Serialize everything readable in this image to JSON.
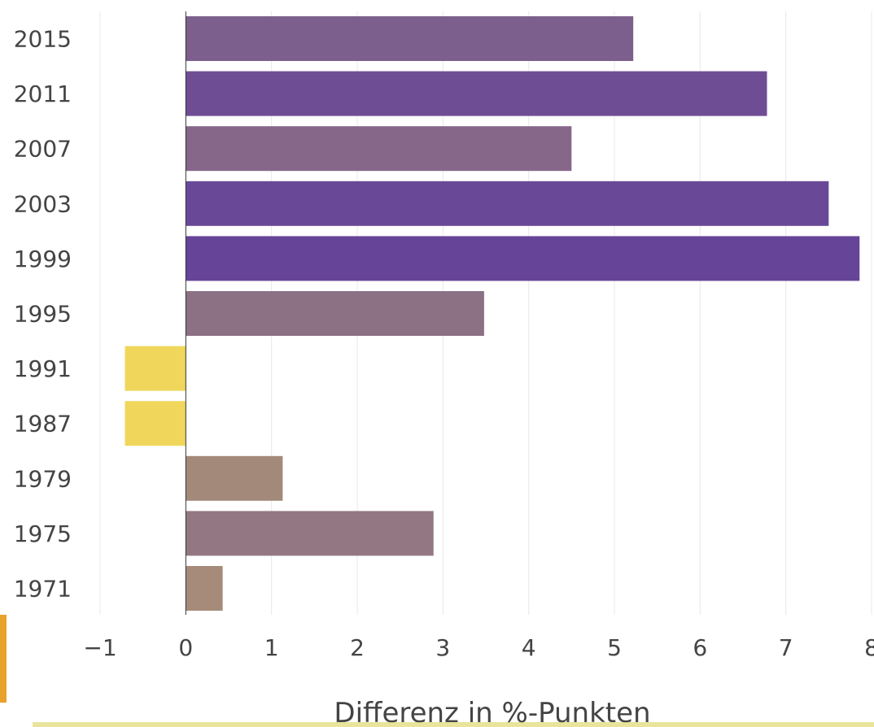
{
  "chart_data": {
    "type": "bar",
    "orientation": "horizontal",
    "categories": [
      "2015",
      "2011",
      "2007",
      "2003",
      "1999",
      "1995",
      "1991",
      "1987",
      "1979",
      "1975",
      "1971"
    ],
    "values": [
      5.22,
      6.78,
      4.5,
      7.5,
      7.86,
      3.48,
      -0.71,
      -0.71,
      1.13,
      2.89,
      0.43
    ],
    "bar_colors": [
      "#7c5f8c",
      "#6f4d95",
      "#86678a",
      "#694997",
      "#664497",
      "#8c7084",
      "#f0d75c",
      "#f0d75c",
      "#a38979",
      "#937883",
      "#a68b7a"
    ],
    "xlabel": "Differenz in %-Punkten",
    "xlim": [
      -1,
      8
    ],
    "xticks": [
      -1,
      0,
      1,
      2,
      3,
      4,
      5,
      6,
      7,
      8
    ],
    "xtick_labels": [
      "−1",
      "0",
      "1",
      "2",
      "3",
      "4",
      "5",
      "6",
      "7",
      "8"
    ],
    "grid": true,
    "legend": "none"
  }
}
